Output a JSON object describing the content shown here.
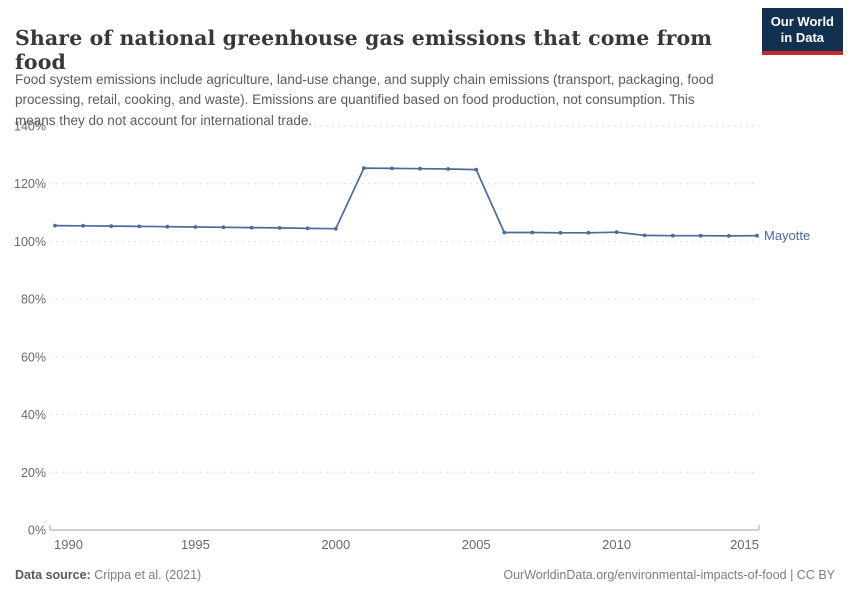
{
  "header": {
    "title": "Share of national greenhouse gas emissions that come from food",
    "subtitle": "Food system emissions include agriculture, land-use change, and supply chain emissions (transport, packaging, food processing, retail, cooking, and waste). Emissions are quantified based on food production, not consumption. This means they do not account for international trade."
  },
  "logo": {
    "line1": "Our World",
    "line2": "in Data",
    "bg_color": "#12304f",
    "accent_color": "#c5292a"
  },
  "chart_data": {
    "type": "line",
    "title": "Share of national greenhouse gas emissions that come from food",
    "x": [
      1990,
      1991,
      1992,
      1993,
      1994,
      1995,
      1996,
      1997,
      1998,
      1999,
      2000,
      2001,
      2002,
      2003,
      2004,
      2005,
      2006,
      2007,
      2008,
      2009,
      2010,
      2011,
      2012,
      2013,
      2014,
      2015
    ],
    "series": [
      {
        "name": "Mayotte",
        "color": "#4c6a9c",
        "values": [
          105.5,
          105.4,
          105.3,
          105.2,
          105.1,
          105.0,
          104.9,
          104.8,
          104.7,
          104.5,
          104.4,
          125.4,
          125.3,
          125.2,
          125.1,
          124.9,
          103.1,
          103.1,
          103.0,
          103.0,
          103.2,
          102.1,
          102.0,
          102.0,
          101.9,
          102.0
        ]
      }
    ],
    "ylim": [
      0,
      140
    ],
    "yticks": [
      0,
      20,
      40,
      60,
      80,
      100,
      120,
      140
    ],
    "ytick_suffix": "%",
    "xticks": [
      1990,
      1995,
      2000,
      2005,
      2010,
      2015
    ],
    "xlabel": "",
    "ylabel": "",
    "grid": "horizontal-dashed",
    "legend_position": "end-of-line",
    "grid_color": "#dcdcdc",
    "axis_color": "#a1a1a1",
    "tick_label_color": "#696969"
  },
  "footer": {
    "datasource_label": "Data source:",
    "datasource_value": "Crippa et al. (2021)",
    "attribution": "OurWorldinData.org/environmental-impacts-of-food | CC BY"
  }
}
